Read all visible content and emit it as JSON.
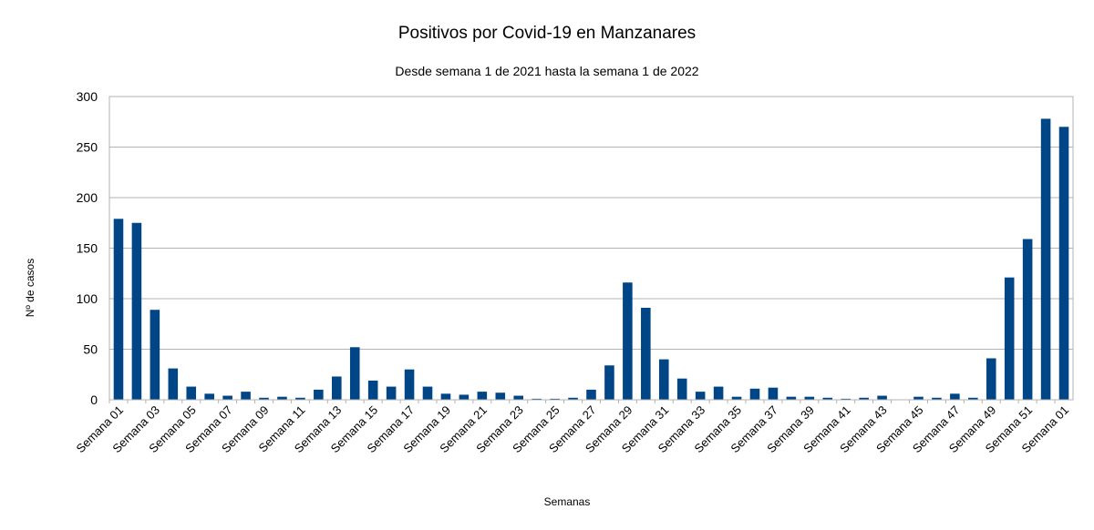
{
  "chart_data": {
    "type": "bar",
    "title": "Positivos por Covid-19 en Manzanares",
    "subtitle": "Desde semana 1 de 2021 hasta la semana 1 de 2022",
    "xlabel": "Semanas",
    "ylabel": "Nº de casos",
    "ylim": [
      0,
      300
    ],
    "yticks": [
      "0",
      "50",
      "100",
      "150",
      "200",
      "250",
      "300"
    ],
    "grid": true,
    "bar_color": "#004586",
    "categories": [
      "Semana 01",
      "Semana 02",
      "Semana 03",
      "Semana 04",
      "Semana 05",
      "Semana 06",
      "Semana 07",
      "Semana 08",
      "Semana 09",
      "Semana 10",
      "Semana 11",
      "Semana 12",
      "Semana 13",
      "Semana 14",
      "Semana 15",
      "Semana 16",
      "Semana 17",
      "Semana 18",
      "Semana 19",
      "Semana 20",
      "Semana 21",
      "Semana 22",
      "Semana 23",
      "Semana 24",
      "Semana 25",
      "Semana 26",
      "Semana 27",
      "Semana 28",
      "Semana 29",
      "Semana 30",
      "Semana 31",
      "Semana 32",
      "Semana 33",
      "Semana 34",
      "Semana 35",
      "Semana 36",
      "Semana 37",
      "Semana 38",
      "Semana 39",
      "Semana 40",
      "Semana 41",
      "Semana 42",
      "Semana 43",
      "Semana 44",
      "Semana 45",
      "Semana 46",
      "Semana 47",
      "Semana 48",
      "Semana 49",
      "Semana 50",
      "Semana 51",
      "Semana 52",
      "Semana 01"
    ],
    "values": [
      179,
      175,
      89,
      31,
      13,
      6,
      4,
      8,
      2,
      3,
      2,
      10,
      23,
      52,
      19,
      13,
      30,
      13,
      6,
      5,
      8,
      7,
      4,
      1,
      1,
      2,
      10,
      34,
      116,
      91,
      40,
      21,
      8,
      13,
      3,
      11,
      12,
      3,
      3,
      2,
      1,
      2,
      4,
      0,
      3,
      2,
      6,
      2,
      41,
      121,
      159,
      278,
      270
    ]
  }
}
